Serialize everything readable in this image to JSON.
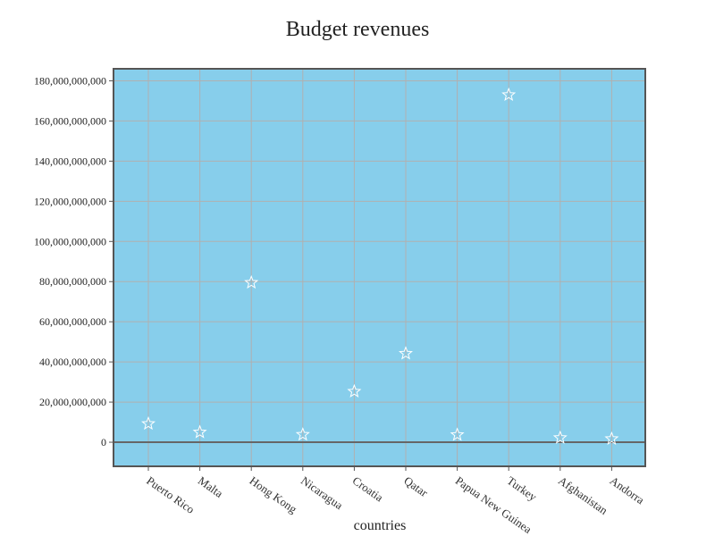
{
  "chart_data": {
    "type": "scatter",
    "title": "Budget revenues",
    "xlabel": "countries",
    "ylabel": "",
    "categories": [
      "Puerto Rico",
      "Malta",
      "Hong Kong",
      "Nicaragua",
      "Croatia",
      "Qatar",
      "Papua New Guinea",
      "Turkey",
      "Afghanistan",
      "Andorra"
    ],
    "values": [
      9200000000,
      5000000000,
      79500000000,
      3800000000,
      25300000000,
      44200000000,
      3700000000,
      173000000000,
      2200000000,
      1700000000
    ],
    "y_ticks": [
      "0",
      "20,000,000,000",
      "40,000,000,000",
      "60,000,000,000",
      "80,000,000,000",
      "100,000,000,000",
      "120,000,000,000",
      "140,000,000,000",
      "160,000,000,000",
      "180,000,000,000"
    ],
    "y_tick_values": [
      0,
      20000000000,
      40000000000,
      60000000000,
      80000000000,
      100000000000,
      120000000000,
      140000000000,
      160000000000,
      180000000000
    ],
    "ylim": [
      -12000000000,
      186000000000
    ],
    "grid": true,
    "marker": "star",
    "colors": {
      "plot_bg": "#87ceeb",
      "grid": "#b0b0b0",
      "frame": "#555555",
      "zero_line": "#666666",
      "marker": "#ffffff"
    }
  }
}
